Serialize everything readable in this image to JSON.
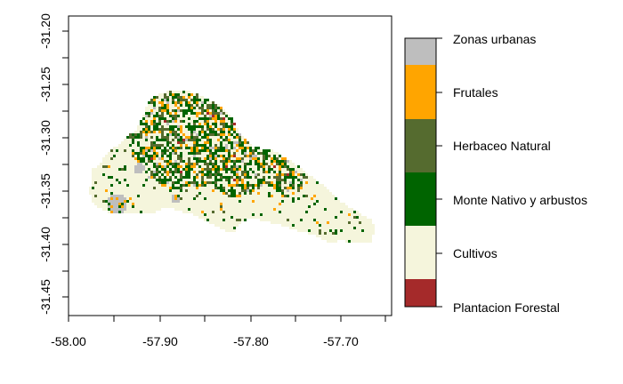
{
  "map": {
    "x_axis": {
      "ticks": [
        "-58.00",
        "-57.90",
        "-57.80",
        "-57.70"
      ],
      "range": [
        -58.0,
        -57.64
      ]
    },
    "y_axis": {
      "ticks": [
        "-31.20",
        "-31.25",
        "-31.30",
        "-31.35",
        "-31.40",
        "-31.45"
      ],
      "range": [
        -31.47,
        -31.185
      ]
    },
    "legend": {
      "classes": [
        {
          "label": "Zonas urbanas",
          "color": "#bebebe"
        },
        {
          "label": "Frutales",
          "color": "#ffa500"
        },
        {
          "label": "Herbaceo Natural",
          "color": "#556b2f"
        },
        {
          "label": "Monte Nativo y arbustos",
          "color": "#006400"
        },
        {
          "label": "Cultivos",
          "color": "#f5f5dc"
        },
        {
          "label": "Plantacion Forestal",
          "color": "#a52a2a"
        }
      ]
    }
  }
}
